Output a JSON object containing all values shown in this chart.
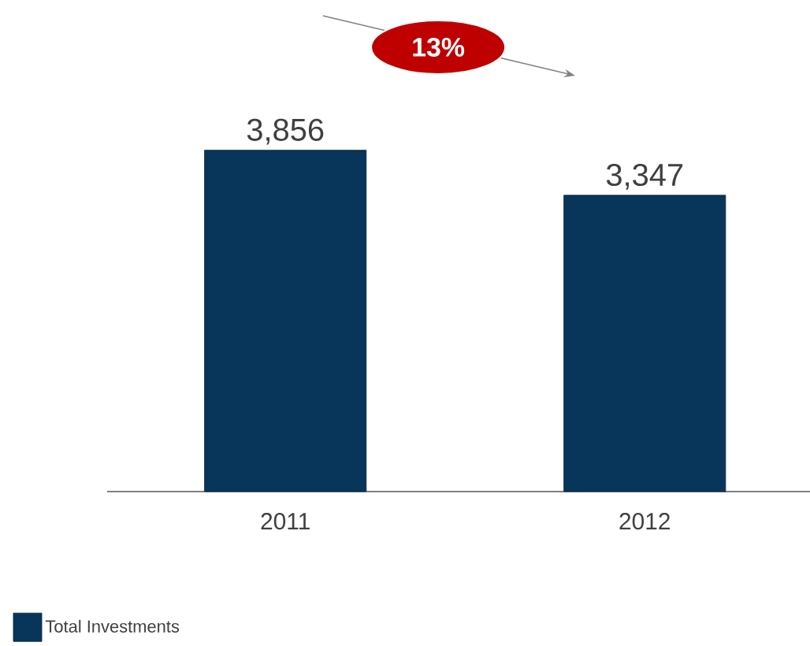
{
  "chart_data": {
    "type": "bar",
    "categories": [
      "2011",
      "2012"
    ],
    "series": [
      {
        "name": "Total Investments",
        "color": "#08355a",
        "values": [
          3856,
          3347
        ],
        "value_labels": [
          "3,856",
          "3,347"
        ]
      }
    ],
    "annotations": [
      "13%"
    ],
    "legend": "bottom left"
  }
}
